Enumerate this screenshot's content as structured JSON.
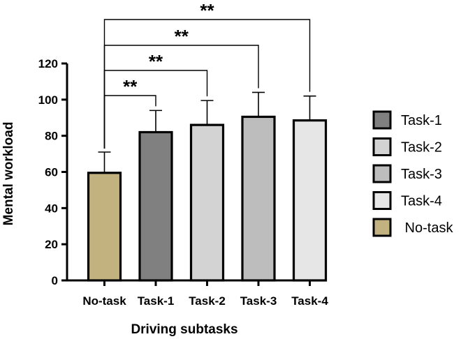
{
  "chart_data": {
    "type": "bar",
    "title": "",
    "xlabel": "Driving subtasks",
    "ylabel": "Mental workload",
    "ylim": [
      0,
      120
    ],
    "yticks": [
      0,
      20,
      40,
      60,
      80,
      100,
      120
    ],
    "categories": [
      "No-task",
      "Task-1",
      "Task-2",
      "Task-3",
      "Task-4"
    ],
    "values": [
      59.5,
      82,
      86,
      90.5,
      88.5
    ],
    "errors": [
      11.5,
      12,
      13.5,
      13.5,
      13.5
    ],
    "colors": [
      "#c2b280",
      "#808080",
      "#d3d3d3",
      "#bdbdbd",
      "#e6e6e6"
    ],
    "legend": {
      "position": "right",
      "entries": [
        {
          "label": "Task-1",
          "color": "#808080"
        },
        {
          "label": "Task-2",
          "color": "#d3d3d3"
        },
        {
          "label": "Task-3",
          "color": "#bdbdbd"
        },
        {
          "label": "Task-4",
          "color": "#e6e6e6"
        },
        {
          "label": " No-task",
          "color": "#c2b280"
        }
      ]
    },
    "significance": [
      {
        "from": "No-task",
        "to": "Task-1",
        "label": "**"
      },
      {
        "from": "No-task",
        "to": "Task-2",
        "label": "**"
      },
      {
        "from": "No-task",
        "to": "Task-3",
        "label": "**"
      },
      {
        "from": "No-task",
        "to": "Task-4",
        "label": "**"
      }
    ]
  }
}
